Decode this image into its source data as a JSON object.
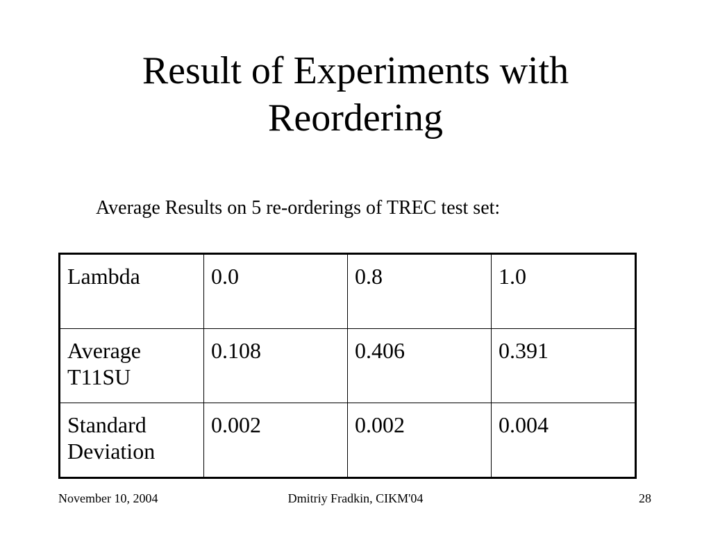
{
  "slide": {
    "title_line1": "Result of Experiments with",
    "title_line2": "Reordering",
    "subtitle": "Average Results on 5 re-orderings of TREC test set:"
  },
  "table": {
    "header": {
      "label": "Lambda",
      "cells": [
        "0.0",
        "0.8",
        "1.0"
      ]
    },
    "rows": [
      {
        "label_line1": "Average",
        "label_line2": "T11SU",
        "cells": [
          "0.108",
          "0.406",
          "0.391"
        ]
      },
      {
        "label_line1": "Standard",
        "label_line2": "Deviation",
        "cells": [
          "0.002",
          "0.002",
          "0.004"
        ]
      }
    ]
  },
  "footer": {
    "date": "November 10, 2004",
    "author": "Dmitriy Fradkin, CIKM'04",
    "page": "28"
  }
}
